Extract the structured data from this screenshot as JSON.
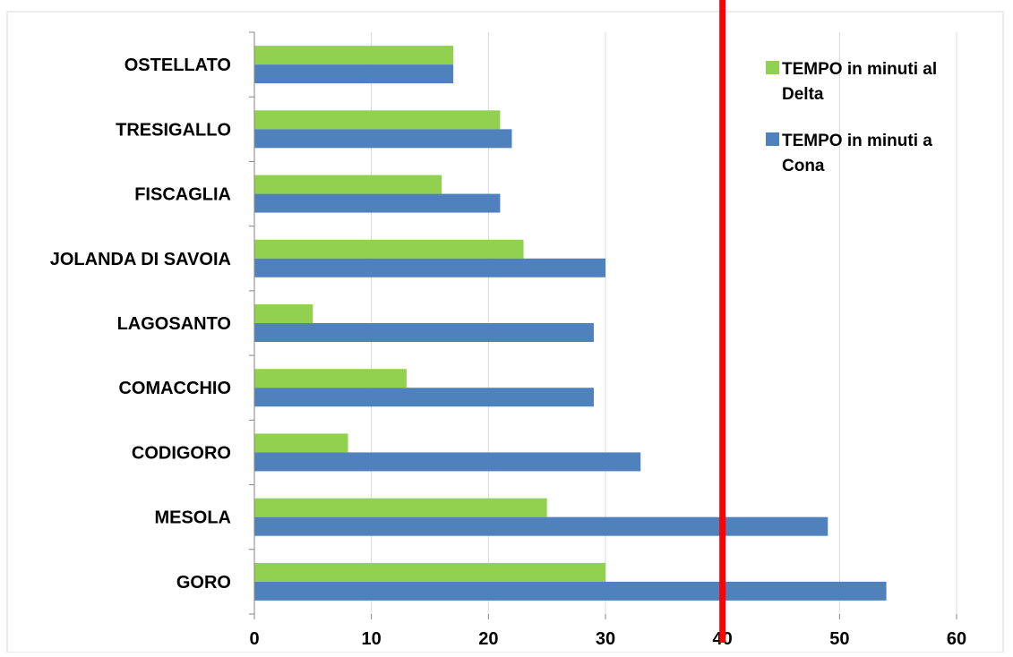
{
  "chart_data": {
    "type": "bar",
    "orientation": "horizontal",
    "categories": [
      "OSTELLATO",
      "TRESIGALLO",
      "FISCAGLIA",
      "JOLANDA DI SAVOIA",
      "LAGOSANTO",
      "COMACCHIO",
      "CODIGORO",
      "MESOLA",
      "GORO"
    ],
    "series": [
      {
        "name": "TEMPO in minuti al Delta",
        "color": "#92d050",
        "values": [
          17,
          21,
          16,
          23,
          5,
          13,
          8,
          25,
          30
        ]
      },
      {
        "name": "TEMPO in minuti a Cona",
        "color": "#4f81bd",
        "values": [
          17,
          22,
          21,
          30,
          29,
          29,
          33,
          49,
          54
        ]
      }
    ],
    "xlim": [
      0,
      60
    ],
    "x_ticks": [
      "0",
      "10",
      "20",
      "30",
      "40",
      "50",
      "60"
    ],
    "grid": true,
    "legend_position": "top-right",
    "reference_line": {
      "x": 40,
      "color": "#ff0000"
    }
  }
}
